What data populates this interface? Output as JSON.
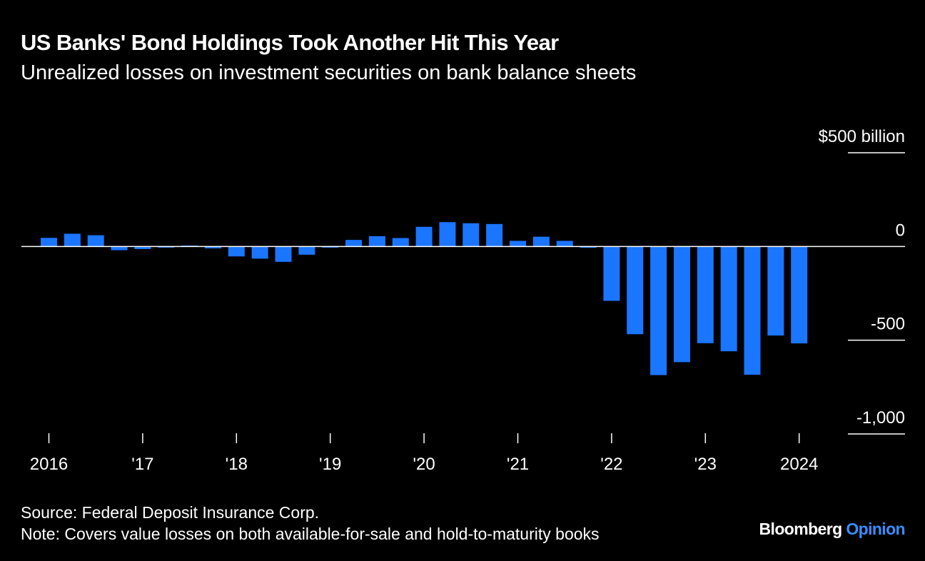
{
  "header": {
    "title": "US Banks' Bond Holdings Took Another Hit This Year",
    "subtitle": "Unrealized losses on investment securities on bank balance sheets"
  },
  "footer": {
    "source": "Source: Federal Deposit Insurance Corp.",
    "note": "Note: Covers value losses on both available-for-sale and hold-to-maturity books"
  },
  "brand": {
    "name": "Bloomberg",
    "product": "Opinion",
    "accent_color": "#3b8cff"
  },
  "chart_data": {
    "type": "bar",
    "bar_color": "#1a75ff",
    "background": "#000000",
    "y_unit_label": "$500 billion",
    "ylim": [
      -1000,
      500
    ],
    "y_ticks": [
      {
        "value": 500,
        "label": "$500 billion"
      },
      {
        "value": 0,
        "label": "0"
      },
      {
        "value": -500,
        "label": "-500"
      },
      {
        "value": -1000,
        "label": "-1,000"
      }
    ],
    "x_ticks": [
      {
        "period": "2016 Q1",
        "label": "2016"
      },
      {
        "period": "2017 Q1",
        "label": "'17"
      },
      {
        "period": "2018 Q1",
        "label": "'18"
      },
      {
        "period": "2019 Q1",
        "label": "'19"
      },
      {
        "period": "2020 Q1",
        "label": "'20"
      },
      {
        "period": "2021 Q1",
        "label": "'21"
      },
      {
        "period": "2022 Q1",
        "label": "'22"
      },
      {
        "period": "2023 Q1",
        "label": "'23"
      },
      {
        "period": "2024 Q1",
        "label": "2024"
      }
    ],
    "categories": [
      "2016 Q1",
      "2016 Q2",
      "2016 Q3",
      "2016 Q4",
      "2017 Q1",
      "2017 Q2",
      "2017 Q3",
      "2017 Q4",
      "2018 Q1",
      "2018 Q2",
      "2018 Q3",
      "2018 Q4",
      "2019 Q1",
      "2019 Q2",
      "2019 Q3",
      "2019 Q4",
      "2020 Q1",
      "2020 Q2",
      "2020 Q3",
      "2020 Q4",
      "2021 Q1",
      "2021 Q2",
      "2021 Q3",
      "2021 Q4",
      "2022 Q1",
      "2022 Q2",
      "2022 Q3",
      "2022 Q4",
      "2023 Q1",
      "2023 Q2",
      "2023 Q3",
      "2023 Q4",
      "2024 Q1"
    ],
    "values": [
      46,
      68,
      60,
      -20,
      -14,
      -6,
      5,
      -10,
      -53,
      -65,
      -82,
      -44,
      -6,
      35,
      55,
      45,
      105,
      130,
      124,
      120,
      30,
      52,
      30,
      -7,
      -290,
      -468,
      -686,
      -617,
      -516,
      -559,
      -684,
      -475,
      -517
    ]
  }
}
